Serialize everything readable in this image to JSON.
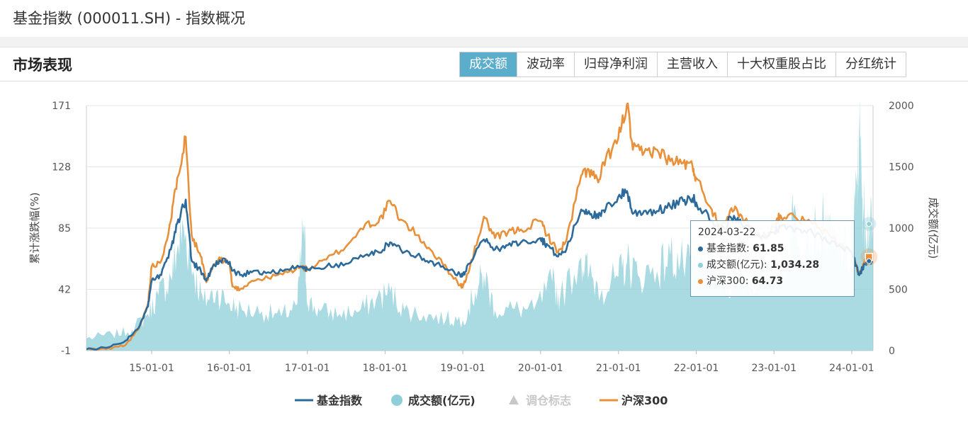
{
  "page": {
    "title": "基金指数 (000011.SH) - 指数概况"
  },
  "panel": {
    "title": "市场表现"
  },
  "tabs": [
    {
      "label": "成交额",
      "active": true
    },
    {
      "label": "波动率",
      "active": false
    },
    {
      "label": "归母净利润",
      "active": false
    },
    {
      "label": "主营收入",
      "active": false
    },
    {
      "label": "十大权重股占比",
      "active": false
    },
    {
      "label": "分红统计",
      "active": false
    }
  ],
  "colors": {
    "fund_index": "#2b6a9a",
    "turnover": "#8ecfd9",
    "csi300": "#e8913a",
    "marker": "#c8c8c8",
    "tab_active": "#5aaecb"
  },
  "chart_data": {
    "type": "line",
    "y_left_label": "累计涨跌幅(%)",
    "y_right_label": "成交额(亿元)",
    "y_left_ticks": [
      -1,
      42,
      85,
      128,
      171
    ],
    "y_right_ticks": [
      0,
      500,
      1000,
      1500,
      2000
    ],
    "y_left_range": [
      -1,
      171
    ],
    "y_right_range": [
      0,
      2000
    ],
    "x_range": [
      "2014-03-01",
      "2024-04-10"
    ],
    "x_ticks": [
      "15-01-01",
      "16-01-01",
      "17-01-01",
      "18-01-01",
      "19-01-01",
      "20-01-01",
      "21-01-01",
      "22-01-01",
      "23-01-01",
      "24-01-01"
    ],
    "x_tick_dates": [
      "2015-01-01",
      "2016-01-01",
      "2017-01-01",
      "2018-01-01",
      "2019-01-01",
      "2020-01-01",
      "2021-01-01",
      "2022-01-01",
      "2023-01-01",
      "2024-01-01"
    ],
    "legend": [
      {
        "name": "基金指数",
        "symbol": "line",
        "color": "#2b6a9a"
      },
      {
        "name": "成交额(亿元)",
        "symbol": "circle",
        "color": "#8ecfd9"
      },
      {
        "name": "调仓标志",
        "symbol": "triangle",
        "color": "#c8c8c8",
        "inactive": true
      },
      {
        "name": "沪深300",
        "symbol": "line",
        "color": "#e8913a"
      }
    ],
    "series": [
      {
        "name": "基金指数",
        "axis": "left",
        "kind": "line",
        "points": [
          [
            "2014-03-01",
            0
          ],
          [
            "2014-06-01",
            1
          ],
          [
            "2014-09-01",
            6
          ],
          [
            "2014-11-01",
            15
          ],
          [
            "2014-12-15",
            30
          ],
          [
            "2015-01-01",
            48
          ],
          [
            "2015-02-15",
            52
          ],
          [
            "2015-04-01",
            70
          ],
          [
            "2015-05-01",
            88
          ],
          [
            "2015-06-10",
            105
          ],
          [
            "2015-07-08",
            62
          ],
          [
            "2015-08-20",
            55
          ],
          [
            "2015-09-15",
            48
          ],
          [
            "2015-10-15",
            58
          ],
          [
            "2015-11-20",
            62
          ],
          [
            "2016-01-01",
            61
          ],
          [
            "2016-01-15",
            55
          ],
          [
            "2016-02-20",
            52
          ],
          [
            "2016-04-15",
            54
          ],
          [
            "2016-07-01",
            54
          ],
          [
            "2016-10-01",
            56
          ],
          [
            "2016-12-01",
            58
          ],
          [
            "2017-01-01",
            56
          ],
          [
            "2017-04-01",
            58
          ],
          [
            "2017-07-01",
            60
          ],
          [
            "2017-10-01",
            66
          ],
          [
            "2017-12-01",
            68
          ],
          [
            "2018-01-25",
            75
          ],
          [
            "2018-03-15",
            70
          ],
          [
            "2018-06-01",
            66
          ],
          [
            "2018-08-01",
            62
          ],
          [
            "2018-10-20",
            56
          ],
          [
            "2018-12-20",
            52
          ],
          [
            "2019-01-01",
            52
          ],
          [
            "2019-02-01",
            60
          ],
          [
            "2019-04-10",
            77
          ],
          [
            "2019-06-01",
            70
          ],
          [
            "2019-08-01",
            73
          ],
          [
            "2019-10-01",
            75
          ],
          [
            "2019-12-31",
            78
          ],
          [
            "2020-02-03",
            73
          ],
          [
            "2020-03-23",
            65
          ],
          [
            "2020-05-01",
            70
          ],
          [
            "2020-07-10",
            98
          ],
          [
            "2020-08-15",
            97
          ],
          [
            "2020-09-28",
            92
          ],
          [
            "2020-11-01",
            98
          ],
          [
            "2020-12-31",
            107
          ],
          [
            "2021-02-10",
            111
          ],
          [
            "2021-03-09",
            95
          ],
          [
            "2021-05-01",
            97
          ],
          [
            "2021-07-01",
            97
          ],
          [
            "2021-09-01",
            100
          ],
          [
            "2021-11-01",
            104
          ],
          [
            "2021-12-15",
            106
          ],
          [
            "2022-01-01",
            103
          ],
          [
            "2022-03-15",
            90
          ],
          [
            "2022-04-26",
            83
          ],
          [
            "2022-06-15",
            92
          ],
          [
            "2022-08-01",
            88
          ],
          [
            "2022-10-31",
            78
          ],
          [
            "2022-12-31",
            82
          ],
          [
            "2023-01-31",
            86
          ],
          [
            "2023-04-15",
            85
          ],
          [
            "2023-07-01",
            82
          ],
          [
            "2023-10-01",
            76
          ],
          [
            "2024-01-01",
            68
          ],
          [
            "2024-02-05",
            52
          ],
          [
            "2024-03-01",
            60
          ],
          [
            "2024-03-22",
            61.85
          ],
          [
            "2024-04-10",
            62
          ]
        ]
      },
      {
        "name": "沪深300",
        "axis": "left",
        "kind": "line",
        "points": [
          [
            "2014-03-01",
            0
          ],
          [
            "2014-06-01",
            0
          ],
          [
            "2014-09-01",
            3
          ],
          [
            "2014-11-01",
            14
          ],
          [
            "2014-12-15",
            32
          ],
          [
            "2015-01-01",
            58
          ],
          [
            "2015-02-15",
            62
          ],
          [
            "2015-04-01",
            90
          ],
          [
            "2015-05-01",
            120
          ],
          [
            "2015-06-10",
            149
          ],
          [
            "2015-07-08",
            80
          ],
          [
            "2015-08-20",
            65
          ],
          [
            "2015-09-15",
            47
          ],
          [
            "2015-10-15",
            58
          ],
          [
            "2015-11-20",
            63
          ],
          [
            "2016-01-01",
            61
          ],
          [
            "2016-01-15",
            44
          ],
          [
            "2016-02-20",
            42
          ],
          [
            "2016-04-15",
            48
          ],
          [
            "2016-07-01",
            50
          ],
          [
            "2016-10-01",
            54
          ],
          [
            "2016-12-01",
            58
          ],
          [
            "2017-01-01",
            56
          ],
          [
            "2017-04-01",
            63
          ],
          [
            "2017-07-01",
            72
          ],
          [
            "2017-10-01",
            88
          ],
          [
            "2017-12-01",
            89
          ],
          [
            "2018-01-25",
            104
          ],
          [
            "2018-03-15",
            91
          ],
          [
            "2018-06-01",
            80
          ],
          [
            "2018-08-01",
            70
          ],
          [
            "2018-10-20",
            56
          ],
          [
            "2018-12-20",
            45
          ],
          [
            "2019-01-01",
            44
          ],
          [
            "2019-02-01",
            56
          ],
          [
            "2019-04-10",
            93
          ],
          [
            "2019-06-01",
            78
          ],
          [
            "2019-08-01",
            82
          ],
          [
            "2019-10-01",
            84
          ],
          [
            "2019-12-31",
            90
          ],
          [
            "2020-02-03",
            80
          ],
          [
            "2020-03-23",
            68
          ],
          [
            "2020-05-01",
            76
          ],
          [
            "2020-07-10",
            122
          ],
          [
            "2020-08-15",
            126
          ],
          [
            "2020-09-28",
            117
          ],
          [
            "2020-11-01",
            133
          ],
          [
            "2020-12-31",
            148
          ],
          [
            "2021-02-10",
            172
          ],
          [
            "2021-03-09",
            140
          ],
          [
            "2021-05-01",
            138
          ],
          [
            "2021-07-01",
            140
          ],
          [
            "2021-09-01",
            132
          ],
          [
            "2021-11-01",
            131
          ],
          [
            "2021-12-15",
            128
          ],
          [
            "2022-01-01",
            120
          ],
          [
            "2022-03-15",
            98
          ],
          [
            "2022-04-26",
            86
          ],
          [
            "2022-06-15",
            99
          ],
          [
            "2022-08-01",
            94
          ],
          [
            "2022-10-31",
            78
          ],
          [
            "2022-12-31",
            86
          ],
          [
            "2023-01-31",
            94
          ],
          [
            "2023-04-15",
            92
          ],
          [
            "2023-07-01",
            88
          ],
          [
            "2023-10-01",
            78
          ],
          [
            "2024-01-01",
            68
          ],
          [
            "2024-02-05",
            52
          ],
          [
            "2024-03-01",
            62
          ],
          [
            "2024-03-22",
            64.73
          ],
          [
            "2024-04-10",
            64
          ]
        ]
      },
      {
        "name": "成交额(亿元)",
        "axis": "right",
        "kind": "area",
        "points": [
          [
            "2014-03-01",
            100
          ],
          [
            "2014-07-01",
            130
          ],
          [
            "2014-10-01",
            170
          ],
          [
            "2014-12-15",
            300
          ],
          [
            "2015-02-01",
            450
          ],
          [
            "2015-04-01",
            600
          ],
          [
            "2015-05-01",
            820
          ],
          [
            "2015-06-01",
            1000
          ],
          [
            "2015-07-15",
            650
          ],
          [
            "2015-09-01",
            400
          ],
          [
            "2015-11-01",
            480
          ],
          [
            "2016-01-01",
            380
          ],
          [
            "2016-03-01",
            330
          ],
          [
            "2016-06-01",
            320
          ],
          [
            "2016-09-01",
            280
          ],
          [
            "2016-11-15",
            380
          ],
          [
            "2016-12-15",
            1040
          ],
          [
            "2017-01-01",
            400
          ],
          [
            "2017-03-01",
            320
          ],
          [
            "2017-06-01",
            300
          ],
          [
            "2017-09-01",
            320
          ],
          [
            "2017-11-20",
            420
          ],
          [
            "2018-01-25",
            480
          ],
          [
            "2018-04-01",
            330
          ],
          [
            "2018-07-01",
            290
          ],
          [
            "2018-10-15",
            260
          ],
          [
            "2019-01-01",
            250
          ],
          [
            "2019-03-01",
            480
          ],
          [
            "2019-04-10",
            620
          ],
          [
            "2019-06-01",
            330
          ],
          [
            "2019-09-01",
            340
          ],
          [
            "2019-12-01",
            330
          ],
          [
            "2020-02-25",
            560
          ],
          [
            "2020-04-01",
            420
          ],
          [
            "2020-07-10",
            760
          ],
          [
            "2020-08-15",
            620
          ],
          [
            "2020-10-15",
            500
          ],
          [
            "2020-12-31",
            600
          ],
          [
            "2021-02-10",
            720
          ],
          [
            "2021-04-01",
            620
          ],
          [
            "2021-07-01",
            650
          ],
          [
            "2021-09-01",
            780
          ],
          [
            "2021-11-01",
            700
          ],
          [
            "2022-01-01",
            660
          ],
          [
            "2022-03-15",
            700
          ],
          [
            "2022-05-01",
            520
          ],
          [
            "2022-07-01",
            620
          ],
          [
            "2022-09-01",
            560
          ],
          [
            "2022-11-01",
            620
          ],
          [
            "2023-01-01",
            600
          ],
          [
            "2023-03-01",
            760
          ],
          [
            "2023-04-01",
            1120
          ],
          [
            "2023-06-01",
            900
          ],
          [
            "2023-08-15",
            1020
          ],
          [
            "2023-09-15",
            900
          ],
          [
            "2023-11-01",
            850
          ],
          [
            "2024-01-01",
            760
          ],
          [
            "2024-01-25",
            1350
          ],
          [
            "2024-02-06",
            1770
          ],
          [
            "2024-02-20",
            1250
          ],
          [
            "2024-03-05",
            1060
          ],
          [
            "2024-03-22",
            1034.28
          ],
          [
            "2024-04-10",
            950
          ]
        ]
      }
    ],
    "tooltip": {
      "date": "2024-03-22",
      "rows": [
        {
          "name": "基金指数",
          "label": "基金指数: ",
          "value": "61.85",
          "color": "#2b6a9a"
        },
        {
          "name": "成交额(亿元)",
          "label": "成交额(亿元): ",
          "value": "1,034.28",
          "color": "#8ecfd9"
        },
        {
          "name": "沪深300",
          "label": "沪深300: ",
          "value": "64.73",
          "color": "#e8913a"
        }
      ]
    }
  }
}
